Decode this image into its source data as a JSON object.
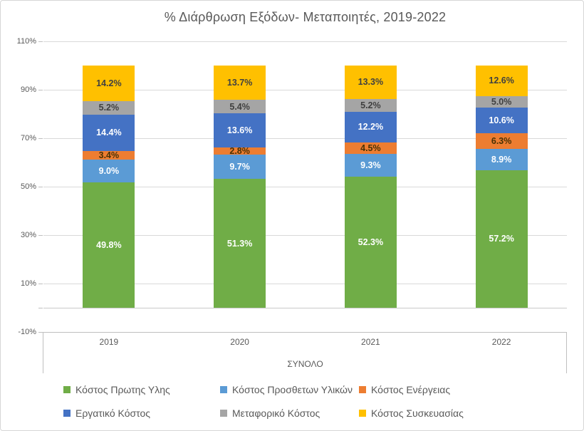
{
  "chart_data": {
    "type": "bar",
    "stacked": true,
    "percent_stacked": true,
    "title": "% Διάρθρωση Εξόδων- Μεταποιητές, 2019-2022",
    "categories": [
      "2019",
      "2020",
      "2021",
      "2022"
    ],
    "group_label": "ΣΥΝΟΛΟ",
    "series": [
      {
        "name": "Κόστος Πρωτης Υλης",
        "color": "#70AD47",
        "label_color": "#FFFFFF",
        "values": [
          49.8,
          51.3,
          52.3,
          57.2
        ]
      },
      {
        "name": "Κόστος Προσθετων Υλικών",
        "color": "#5B9BD5",
        "label_color": "#FFFFFF",
        "values": [
          9.0,
          9.7,
          9.3,
          8.9
        ]
      },
      {
        "name": "Κόστος Ενέργειας",
        "color": "#ED7D31",
        "label_color": "#4A3205",
        "values": [
          3.4,
          2.8,
          4.5,
          6.3
        ]
      },
      {
        "name": "Εργατικό Κόστος",
        "color": "#4472C4",
        "label_color": "#FFFFFF",
        "values": [
          14.4,
          13.6,
          12.2,
          10.6
        ]
      },
      {
        "name": "Μεταφορικό Κόστος",
        "color": "#A5A5A5",
        "label_color": "#404040",
        "values": [
          5.2,
          5.4,
          5.2,
          5.0
        ]
      },
      {
        "name": "Κόστος Συσκευασίας",
        "color": "#FFC000",
        "label_color": "#404040",
        "values": [
          14.2,
          13.7,
          13.3,
          12.6
        ]
      }
    ],
    "value_label_format": "{v}%",
    "yticks": [
      110,
      90,
      70,
      50,
      30,
      10,
      -10
    ],
    "ytick_format": "{v}%",
    "ylim": [
      -10,
      110
    ],
    "grid": true,
    "legend_position": "bottom"
  }
}
